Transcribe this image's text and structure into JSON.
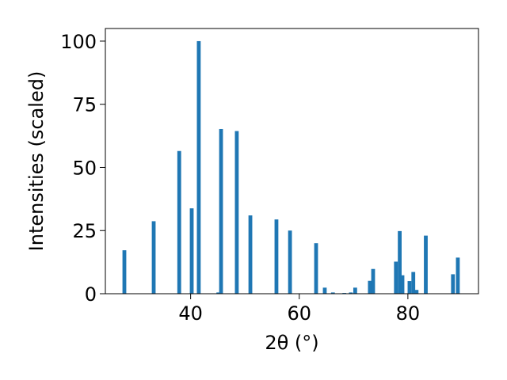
{
  "chart_data": {
    "type": "bar",
    "title": "",
    "xlabel": "2θ (°)",
    "ylabel": "Intensities (scaled)",
    "xlim": [
      24.3,
      93.0
    ],
    "ylim": [
      0,
      105
    ],
    "x_ticks": [
      40,
      60,
      80
    ],
    "y_ticks": [
      0,
      25,
      50,
      75,
      100
    ],
    "bar_width": 0.7,
    "bar_color": "#1f77b4",
    "grid": false,
    "legend": "none",
    "series": [
      {
        "x": [
          27.8,
          33.2,
          37.9,
          40.2,
          41.5,
          45.1,
          45.6,
          48.5,
          51.0,
          55.8,
          58.3,
          63.1,
          64.7,
          66.2,
          68.3,
          69.5,
          70.3,
          73.0,
          73.6,
          77.8,
          78.5,
          79.0,
          80.3,
          81.0,
          81.6,
          83.3,
          88.3,
          89.2
        ],
        "values": [
          17.2,
          28.7,
          56.5,
          33.8,
          100.0,
          0.5,
          65.2,
          64.4,
          31.0,
          29.4,
          25.0,
          20.0,
          2.4,
          0.5,
          0.3,
          0.5,
          2.4,
          5.1,
          9.8,
          12.7,
          24.8,
          7.3,
          5.0,
          8.6,
          1.5,
          23.0,
          7.7,
          14.3
        ]
      }
    ]
  }
}
